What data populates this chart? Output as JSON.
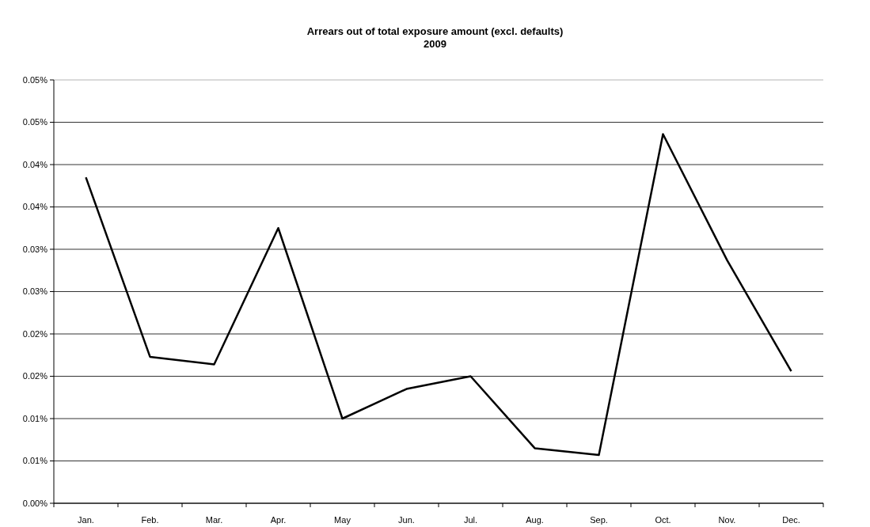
{
  "chart_data": {
    "type": "line",
    "title": "Arrears out of total exposure amount (excl. defaults)",
    "subtitle": "2009",
    "categories": [
      "Jan.",
      "Feb.",
      "Mar.",
      "Apr.",
      "May",
      "Jun.",
      "Jul.",
      "Aug.",
      "Sep.",
      "Oct.",
      "Nov.",
      "Dec."
    ],
    "series": [
      {
        "color": "#000000",
        "values": [
          0.0385,
          0.0173,
          0.0164,
          0.0325,
          0.01,
          0.0135,
          0.015,
          0.0065,
          0.0057,
          0.0436,
          0.0287,
          0.0156
        ]
      }
    ],
    "ylim": [
      0,
      0.05
    ],
    "yticks": [
      {
        "value": 0,
        "label": "0.00%"
      },
      {
        "value": 0.005,
        "label": "0.01%"
      },
      {
        "value": 0.01,
        "label": "0.01%"
      },
      {
        "value": 0.015,
        "label": "0.02%"
      },
      {
        "value": 0.02,
        "label": "0.02%"
      },
      {
        "value": 0.025,
        "label": "0.03%"
      },
      {
        "value": 0.03,
        "label": "0.03%"
      },
      {
        "value": 0.035,
        "label": "0.04%"
      },
      {
        "value": 0.04,
        "label": "0.04%"
      },
      {
        "value": 0.045,
        "label": "0.05%"
      },
      {
        "value": 0.05,
        "label": "0.05%"
      }
    ],
    "grid": "y",
    "marker": "none",
    "line_style": "solid"
  }
}
